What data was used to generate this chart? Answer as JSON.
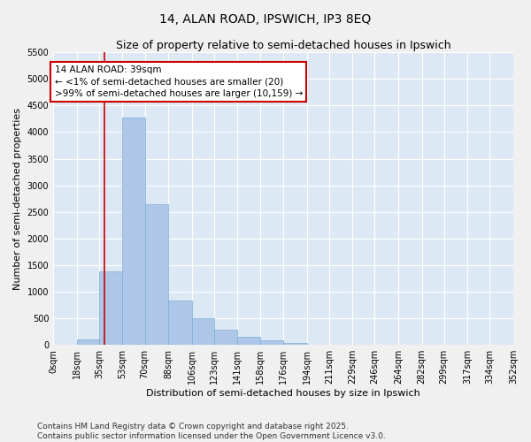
{
  "title": "14, ALAN ROAD, IPSWICH, IP3 8EQ",
  "subtitle": "Size of property relative to semi-detached houses in Ipswich",
  "xlabel": "Distribution of semi-detached houses by size in Ipswich",
  "ylabel": "Number of semi-detached properties",
  "footnote1": "Contains HM Land Registry data © Crown copyright and database right 2025.",
  "footnote2": "Contains public sector information licensed under the Open Government Licence v3.0.",
  "annotation_title": "14 ALAN ROAD: 39sqm",
  "annotation_line1": "← <1% of semi-detached houses are smaller (20)",
  "annotation_line2": ">99% of semi-detached houses are larger (10,159) →",
  "bar_edges": [
    0,
    18,
    35,
    53,
    70,
    88,
    106,
    123,
    141,
    158,
    176,
    194,
    211,
    229,
    246,
    264,
    282,
    299,
    317,
    334,
    352
  ],
  "bar_heights": [
    5,
    100,
    1380,
    4280,
    2650,
    830,
    500,
    280,
    150,
    80,
    40,
    10,
    5,
    3,
    2,
    1,
    1,
    1,
    0,
    0
  ],
  "bar_color": "#aec6e8",
  "bar_edge_color": "#7aafd4",
  "vline_x": 39,
  "vline_color": "#cc0000",
  "ylim": [
    0,
    5500
  ],
  "yticks": [
    0,
    500,
    1000,
    1500,
    2000,
    2500,
    3000,
    3500,
    4000,
    4500,
    5000,
    5500
  ],
  "bg_color": "#dde8f5",
  "grid_color": "#ffffff",
  "annotation_box_color": "#cc0000",
  "fig_bg_color": "#f0f0f0",
  "title_fontsize": 10,
  "subtitle_fontsize": 9,
  "axis_label_fontsize": 8,
  "tick_fontsize": 7,
  "annotation_fontsize": 7.5,
  "footnote_fontsize": 6.5
}
